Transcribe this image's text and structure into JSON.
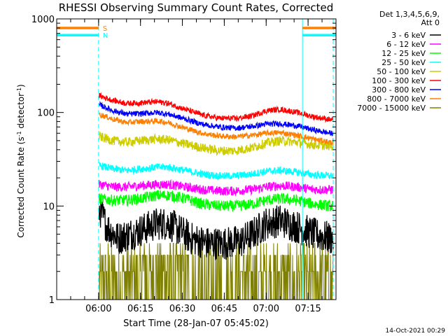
{
  "chart_data": {
    "type": "line",
    "title": "RHESSI Observing Summary Count Rates, Corrected",
    "xlabel": "Start Time (28-Jan-07 05:45:02)",
    "ylabel_main": "Corrected Count Rate (s",
    "ylabel_sup1": "-1",
    "ylabel_mid": " detector",
    "ylabel_sup2": "-1",
    "ylabel_end": ")",
    "y_scale": "log",
    "ylim": [
      1,
      1000
    ],
    "xlim_minutes": [
      0,
      100
    ],
    "x_ticks": [
      {
        "label": "06:00",
        "t": 15
      },
      {
        "label": "06:15",
        "t": 30
      },
      {
        "label": "06:30",
        "t": 45
      },
      {
        "label": "06:45",
        "t": 60
      },
      {
        "label": "07:00",
        "t": 75
      },
      {
        "label": "07:15",
        "t": 90
      }
    ],
    "y_ticks": [
      {
        "label": "1",
        "value": 1
      },
      {
        "label": "10",
        "value": 10
      },
      {
        "label": "100",
        "value": 100
      },
      {
        "label": "1000",
        "value": 1000
      }
    ],
    "legend_header": [
      "Det 1,3,4,5,6,9,",
      "Att 0"
    ],
    "legend_position": "right",
    "flags": [
      {
        "label": "S",
        "color": "#ff8000",
        "level": 800,
        "segments": [
          [
            0,
            15
          ],
          [
            88,
            100
          ]
        ]
      },
      {
        "label": "N",
        "color": "#00ffff",
        "level": 670,
        "segments": [
          [
            0,
            15
          ],
          [
            88,
            100
          ]
        ]
      }
    ],
    "vertical_markers": [
      {
        "t": 0,
        "style": "solid",
        "color": "#00ffff"
      },
      {
        "t": 15,
        "style": "dashed",
        "color": "#00ffff"
      },
      {
        "t": 88,
        "style": "solid",
        "color": "#00ffff"
      },
      {
        "t": 99,
        "style": "dashed",
        "color": "#00ffff"
      }
    ],
    "series": [
      {
        "name": "3 - 6 keV",
        "color": "#000000",
        "noise": 0.18,
        "points": [
          [
            15.5,
            9
          ],
          [
            18,
            6
          ],
          [
            22,
            4.5
          ],
          [
            26,
            5
          ],
          [
            30,
            5.5
          ],
          [
            36,
            6.5
          ],
          [
            40,
            6.5
          ],
          [
            44,
            5.5
          ],
          [
            48,
            4.5
          ],
          [
            54,
            4
          ],
          [
            60,
            4
          ],
          [
            66,
            4.2
          ],
          [
            70,
            5
          ],
          [
            75,
            6.5
          ],
          [
            80,
            7
          ],
          [
            86,
            6
          ],
          [
            92,
            5
          ],
          [
            98,
            4.5
          ]
        ]
      },
      {
        "name": "6 - 12 keV",
        "color": "#ff00ff",
        "noise": 0.05,
        "points": [
          [
            15.5,
            17
          ],
          [
            20,
            16
          ],
          [
            25,
            16
          ],
          [
            30,
            16.5
          ],
          [
            36,
            17
          ],
          [
            40,
            17
          ],
          [
            46,
            16
          ],
          [
            52,
            15
          ],
          [
            58,
            14.5
          ],
          [
            64,
            14.5
          ],
          [
            70,
            15
          ],
          [
            75,
            16
          ],
          [
            80,
            16.5
          ],
          [
            86,
            16
          ],
          [
            92,
            15
          ],
          [
            98,
            15
          ]
        ]
      },
      {
        "name": "12 - 25 keV",
        "color": "#00ff00",
        "noise": 0.06,
        "points": [
          [
            15.5,
            12
          ],
          [
            20,
            11.5
          ],
          [
            25,
            11.5
          ],
          [
            30,
            12
          ],
          [
            36,
            13
          ],
          [
            40,
            13
          ],
          [
            46,
            12
          ],
          [
            52,
            10.5
          ],
          [
            58,
            10
          ],
          [
            64,
            10
          ],
          [
            70,
            10.5
          ],
          [
            75,
            11.5
          ],
          [
            80,
            12
          ],
          [
            86,
            11.5
          ],
          [
            92,
            10.5
          ],
          [
            98,
            10
          ]
        ]
      },
      {
        "name": "25 - 50 keV",
        "color": "#00ffff",
        "noise": 0.04,
        "points": [
          [
            15.5,
            27
          ],
          [
            20,
            25
          ],
          [
            25,
            24
          ],
          [
            30,
            25
          ],
          [
            36,
            26
          ],
          [
            40,
            26
          ],
          [
            46,
            24
          ],
          [
            52,
            22
          ],
          [
            58,
            21
          ],
          [
            64,
            21
          ],
          [
            70,
            22
          ],
          [
            75,
            23.5
          ],
          [
            80,
            24
          ],
          [
            86,
            23
          ],
          [
            92,
            21.5
          ],
          [
            98,
            21
          ]
        ]
      },
      {
        "name": "50 - 100 keV",
        "color": "#cccc00",
        "noise": 0.05,
        "points": [
          [
            15.5,
            55
          ],
          [
            20,
            50
          ],
          [
            25,
            48
          ],
          [
            30,
            50
          ],
          [
            36,
            52
          ],
          [
            40,
            51
          ],
          [
            46,
            46
          ],
          [
            52,
            42
          ],
          [
            58,
            39
          ],
          [
            64,
            39
          ],
          [
            70,
            42
          ],
          [
            75,
            47
          ],
          [
            80,
            50
          ],
          [
            86,
            48
          ],
          [
            92,
            45
          ],
          [
            98,
            44
          ]
        ]
      },
      {
        "name": "100 - 300 keV",
        "color": "#ff0000",
        "noise": 0.03,
        "points": [
          [
            15.5,
            150
          ],
          [
            20,
            135
          ],
          [
            25,
            125
          ],
          [
            30,
            127
          ],
          [
            36,
            130
          ],
          [
            40,
            125
          ],
          [
            46,
            108
          ],
          [
            52,
            94
          ],
          [
            58,
            87
          ],
          [
            64,
            86
          ],
          [
            70,
            92
          ],
          [
            75,
            104
          ],
          [
            80,
            108
          ],
          [
            86,
            100
          ],
          [
            92,
            90
          ],
          [
            98,
            84
          ]
        ]
      },
      {
        "name": "300 - 800 keV",
        "color": "#0000ff",
        "noise": 0.03,
        "points": [
          [
            15.5,
            120
          ],
          [
            20,
            105
          ],
          [
            25,
            96
          ],
          [
            30,
            97
          ],
          [
            36,
            100
          ],
          [
            40,
            96
          ],
          [
            46,
            85
          ],
          [
            52,
            75
          ],
          [
            58,
            70
          ],
          [
            64,
            68
          ],
          [
            70,
            71
          ],
          [
            75,
            75
          ],
          [
            80,
            76
          ],
          [
            86,
            72
          ],
          [
            92,
            65
          ],
          [
            98,
            60
          ]
        ]
      },
      {
        "name": "800 - 7000 keV",
        "color": "#ff8000",
        "noise": 0.03,
        "points": [
          [
            15.5,
            95
          ],
          [
            20,
            85
          ],
          [
            25,
            78
          ],
          [
            30,
            80
          ],
          [
            36,
            81
          ],
          [
            40,
            78
          ],
          [
            46,
            68
          ],
          [
            52,
            60
          ],
          [
            58,
            56
          ],
          [
            64,
            55
          ],
          [
            70,
            57
          ],
          [
            75,
            60
          ],
          [
            80,
            61
          ],
          [
            86,
            57
          ],
          [
            92,
            52
          ],
          [
            98,
            48
          ]
        ]
      },
      {
        "name": "7000 - 15000 keV",
        "color": "#808000",
        "noise": 0,
        "type": "quantized",
        "levels": [
          1,
          2,
          3,
          4
        ]
      }
    ],
    "footer_date": "14-Oct-2021 00:29"
  }
}
